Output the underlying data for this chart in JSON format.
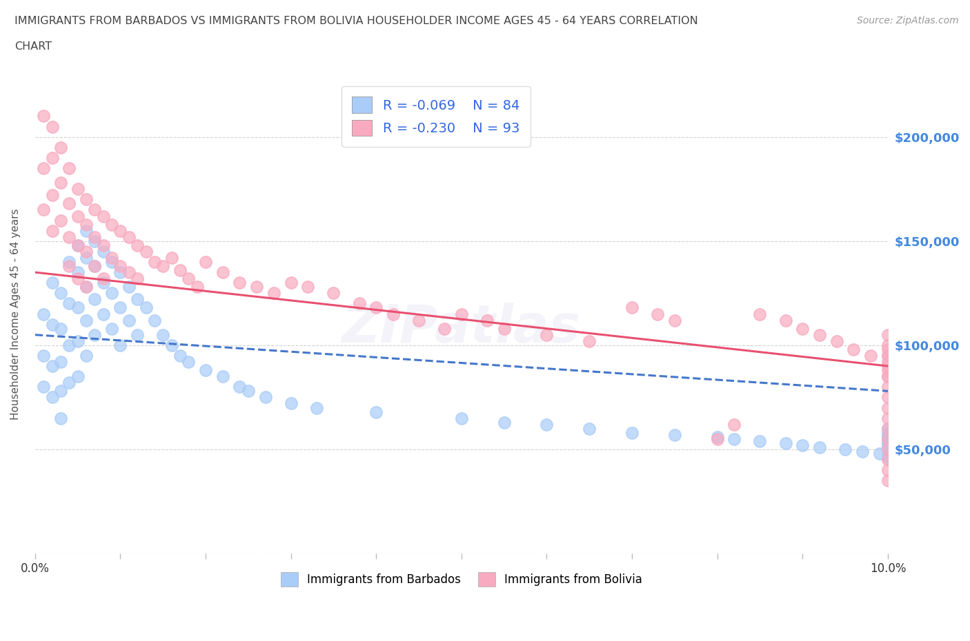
{
  "title_line1": "IMMIGRANTS FROM BARBADOS VS IMMIGRANTS FROM BOLIVIA HOUSEHOLDER INCOME AGES 45 - 64 YEARS CORRELATION",
  "title_line2": "CHART",
  "source_text": "Source: ZipAtlas.com",
  "barbados_label": "Immigrants from Barbados",
  "bolivia_label": "Immigrants from Bolivia",
  "r_barbados": -0.069,
  "n_barbados": 84,
  "r_bolivia": -0.23,
  "n_bolivia": 93,
  "barbados_color": "#aaccf8",
  "bolivia_color": "#f8aac0",
  "barbados_line_color": "#4477cc",
  "bolivia_line_color": "#e85070",
  "axis_label_color": "#4488dd",
  "title_color": "#444444",
  "legend_r_color": "#3366dd",
  "background_color": "#ffffff",
  "grid_color": "#cccccc",
  "ylabel": "Householder Income Ages 45 - 64 years",
  "xlim": [
    0.0,
    0.1
  ],
  "ylim": [
    0,
    230000
  ],
  "yticks": [
    0,
    50000,
    100000,
    150000,
    200000
  ],
  "ytick_labels": [
    "",
    "$50,000",
    "$100,000",
    "$150,000",
    "$200,000"
  ],
  "xticks": [
    0.0,
    0.01,
    0.02,
    0.03,
    0.04,
    0.05,
    0.06,
    0.07,
    0.08,
    0.09,
    0.1
  ],
  "xtick_labels_show": [
    "0.0%",
    "",
    "",
    "",
    "",
    "",
    "",
    "",
    "",
    "",
    "10.0%"
  ],
  "barbados_line_y0": 105000,
  "barbados_line_y1": 78000,
  "bolivia_line_y0": 135000,
  "bolivia_line_y1": 90000,
  "barbados_x": [
    0.001,
    0.001,
    0.001,
    0.002,
    0.002,
    0.002,
    0.002,
    0.003,
    0.003,
    0.003,
    0.003,
    0.003,
    0.004,
    0.004,
    0.004,
    0.004,
    0.005,
    0.005,
    0.005,
    0.005,
    0.005,
    0.006,
    0.006,
    0.006,
    0.006,
    0.006,
    0.007,
    0.007,
    0.007,
    0.007,
    0.008,
    0.008,
    0.008,
    0.009,
    0.009,
    0.009,
    0.01,
    0.01,
    0.01,
    0.011,
    0.011,
    0.012,
    0.012,
    0.013,
    0.014,
    0.015,
    0.016,
    0.017,
    0.018,
    0.02,
    0.022,
    0.024,
    0.025,
    0.027,
    0.03,
    0.033,
    0.04,
    0.05,
    0.055,
    0.06,
    0.065,
    0.07,
    0.075,
    0.08,
    0.082,
    0.085,
    0.088,
    0.09,
    0.092,
    0.095,
    0.097,
    0.099,
    0.1,
    0.1,
    0.1,
    0.1,
    0.1,
    0.1,
    0.1,
    0.1,
    0.1,
    0.1,
    0.1,
    0.1
  ],
  "barbados_y": [
    115000,
    95000,
    80000,
    130000,
    110000,
    90000,
    75000,
    125000,
    108000,
    92000,
    78000,
    65000,
    140000,
    120000,
    100000,
    82000,
    148000,
    135000,
    118000,
    102000,
    85000,
    155000,
    142000,
    128000,
    112000,
    95000,
    150000,
    138000,
    122000,
    105000,
    145000,
    130000,
    115000,
    140000,
    125000,
    108000,
    135000,
    118000,
    100000,
    128000,
    112000,
    122000,
    105000,
    118000,
    112000,
    105000,
    100000,
    95000,
    92000,
    88000,
    85000,
    80000,
    78000,
    75000,
    72000,
    70000,
    68000,
    65000,
    63000,
    62000,
    60000,
    58000,
    57000,
    56000,
    55000,
    54000,
    53000,
    52000,
    51000,
    50000,
    49000,
    48000,
    47000,
    46000,
    55000,
    52000,
    58000,
    60000,
    55000,
    53000,
    57000,
    56000,
    54000,
    52000
  ],
  "bolivia_x": [
    0.001,
    0.001,
    0.001,
    0.002,
    0.002,
    0.002,
    0.002,
    0.003,
    0.003,
    0.003,
    0.004,
    0.004,
    0.004,
    0.004,
    0.005,
    0.005,
    0.005,
    0.005,
    0.006,
    0.006,
    0.006,
    0.006,
    0.007,
    0.007,
    0.007,
    0.008,
    0.008,
    0.008,
    0.009,
    0.009,
    0.01,
    0.01,
    0.011,
    0.011,
    0.012,
    0.012,
    0.013,
    0.014,
    0.015,
    0.016,
    0.017,
    0.018,
    0.019,
    0.02,
    0.022,
    0.024,
    0.026,
    0.028,
    0.03,
    0.032,
    0.035,
    0.038,
    0.04,
    0.042,
    0.045,
    0.048,
    0.05,
    0.053,
    0.055,
    0.06,
    0.065,
    0.07,
    0.073,
    0.075,
    0.08,
    0.082,
    0.085,
    0.088,
    0.09,
    0.092,
    0.094,
    0.096,
    0.098,
    0.1,
    0.1,
    0.1,
    0.1,
    0.1,
    0.1,
    0.1,
    0.1,
    0.1,
    0.1,
    0.1,
    0.1,
    0.1,
    0.1,
    0.1,
    0.1,
    0.1,
    0.1,
    0.1,
    0.1
  ],
  "bolivia_y": [
    210000,
    185000,
    165000,
    205000,
    190000,
    172000,
    155000,
    195000,
    178000,
    160000,
    185000,
    168000,
    152000,
    138000,
    175000,
    162000,
    148000,
    132000,
    170000,
    158000,
    145000,
    128000,
    165000,
    152000,
    138000,
    162000,
    148000,
    132000,
    158000,
    142000,
    155000,
    138000,
    152000,
    135000,
    148000,
    132000,
    145000,
    140000,
    138000,
    142000,
    136000,
    132000,
    128000,
    140000,
    135000,
    130000,
    128000,
    125000,
    130000,
    128000,
    125000,
    120000,
    118000,
    115000,
    112000,
    108000,
    115000,
    112000,
    108000,
    105000,
    102000,
    118000,
    115000,
    112000,
    55000,
    62000,
    115000,
    112000,
    108000,
    105000,
    102000,
    98000,
    95000,
    105000,
    100000,
    98000,
    95000,
    92000,
    88000,
    85000,
    80000,
    75000,
    70000,
    65000,
    60000,
    55000,
    50000,
    45000,
    40000,
    35000,
    95000,
    90000,
    85000
  ]
}
